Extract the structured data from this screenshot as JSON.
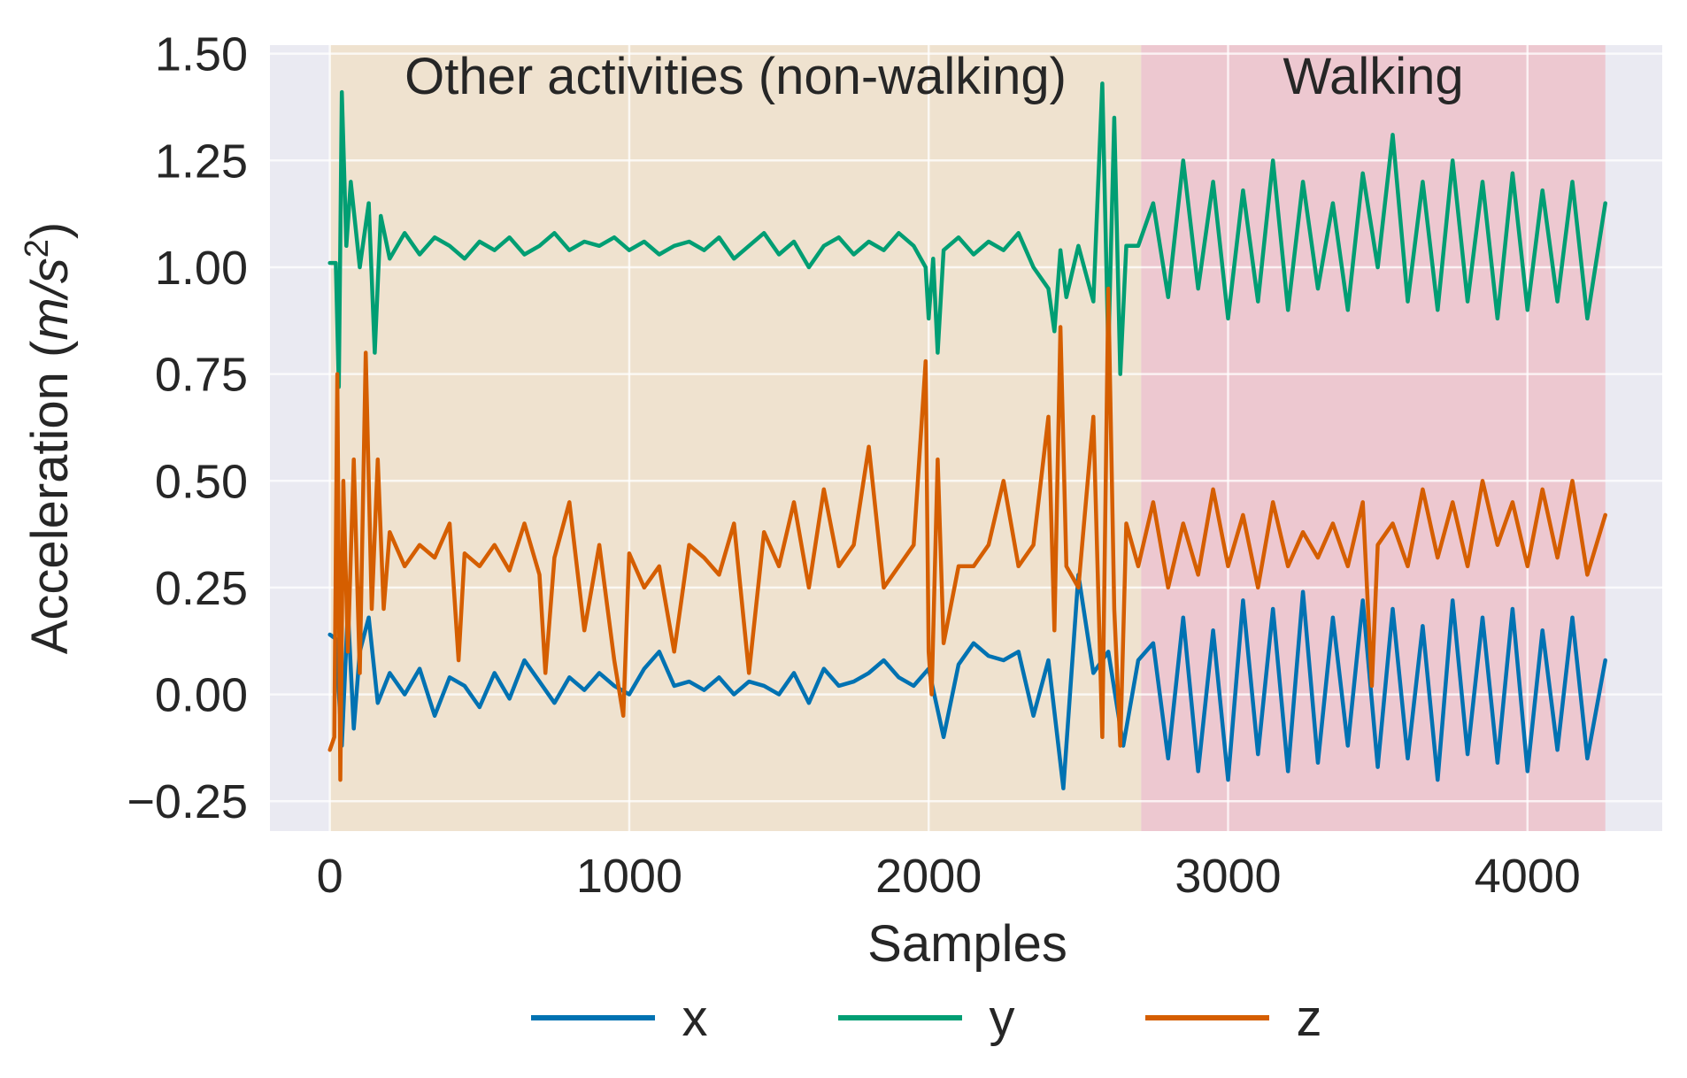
{
  "chart_data": {
    "type": "line",
    "title": "",
    "xlabel": "Samples",
    "ylabel_main": "Acceleration (",
    "ylabel_unit": "m/s",
    "ylabel_exp": "2",
    "ylabel_close": ")",
    "xlim": [
      -200,
      4450
    ],
    "ylim": [
      -0.32,
      1.52
    ],
    "xticks": [
      0,
      1000,
      2000,
      3000,
      4000
    ],
    "xtick_labels": [
      "0",
      "1000",
      "2000",
      "3000",
      "4000"
    ],
    "yticks": [
      -0.25,
      0.0,
      0.25,
      0.5,
      0.75,
      1.0,
      1.25,
      1.5
    ],
    "ytick_labels": [
      "−0.25",
      "0.00",
      "0.25",
      "0.50",
      "0.75",
      "1.00",
      "1.25",
      "1.50"
    ],
    "grid": true,
    "regions": [
      {
        "label": "Other activities (non-walking)",
        "x_start": 0,
        "x_end": 2710,
        "color": "#efe2cf"
      },
      {
        "label": "Walking",
        "x_start": 2710,
        "x_end": 4260,
        "color": "#edc8d0"
      }
    ],
    "legend_position": "bottom-center",
    "series": [
      {
        "name": "x",
        "color": "#0072b2",
        "x": [
          0,
          20,
          40,
          60,
          80,
          100,
          130,
          160,
          200,
          250,
          300,
          350,
          400,
          450,
          500,
          550,
          600,
          650,
          700,
          750,
          800,
          850,
          900,
          950,
          1000,
          1050,
          1100,
          1150,
          1200,
          1250,
          1300,
          1350,
          1400,
          1450,
          1500,
          1550,
          1600,
          1650,
          1700,
          1750,
          1800,
          1850,
          1900,
          1950,
          2000,
          2050,
          2100,
          2150,
          2200,
          2250,
          2300,
          2350,
          2400,
          2450,
          2500,
          2550,
          2600,
          2650,
          2700,
          2750,
          2800,
          2850,
          2900,
          2950,
          3000,
          3050,
          3100,
          3150,
          3200,
          3250,
          3300,
          3350,
          3400,
          3450,
          3500,
          3550,
          3600,
          3650,
          3700,
          3750,
          3800,
          3850,
          3900,
          3950,
          4000,
          4050,
          4100,
          4150,
          4200,
          4260
        ],
        "values": [
          0.14,
          0.13,
          -0.12,
          0.2,
          -0.08,
          0.1,
          0.18,
          -0.02,
          0.05,
          0.0,
          0.06,
          -0.05,
          0.04,
          0.02,
          -0.03,
          0.05,
          -0.01,
          0.08,
          0.03,
          -0.02,
          0.04,
          0.01,
          0.05,
          0.02,
          0.0,
          0.06,
          0.1,
          0.02,
          0.03,
          0.01,
          0.04,
          0.0,
          0.03,
          0.02,
          0.0,
          0.05,
          -0.02,
          0.06,
          0.02,
          0.03,
          0.05,
          0.08,
          0.04,
          0.02,
          0.06,
          -0.1,
          0.07,
          0.12,
          0.09,
          0.08,
          0.1,
          -0.05,
          0.08,
          -0.22,
          0.28,
          0.05,
          0.1,
          -0.12,
          0.08,
          0.12,
          -0.15,
          0.18,
          -0.18,
          0.15,
          -0.2,
          0.22,
          -0.14,
          0.2,
          -0.18,
          0.24,
          -0.16,
          0.18,
          -0.12,
          0.22,
          -0.17,
          0.2,
          -0.15,
          0.16,
          -0.2,
          0.22,
          -0.14,
          0.18,
          -0.16,
          0.2,
          -0.18,
          0.15,
          -0.13,
          0.18,
          -0.15,
          0.08
        ]
      },
      {
        "name": "y",
        "color": "#009e73",
        "x": [
          0,
          20,
          30,
          40,
          55,
          70,
          100,
          130,
          150,
          170,
          200,
          250,
          300,
          350,
          400,
          450,
          500,
          550,
          600,
          650,
          700,
          750,
          800,
          850,
          900,
          950,
          1000,
          1050,
          1100,
          1150,
          1200,
          1250,
          1300,
          1350,
          1400,
          1450,
          1500,
          1550,
          1600,
          1650,
          1700,
          1750,
          1800,
          1850,
          1900,
          1950,
          1990,
          2000,
          2015,
          2030,
          2050,
          2100,
          2150,
          2200,
          2250,
          2300,
          2350,
          2400,
          2420,
          2440,
          2460,
          2500,
          2550,
          2580,
          2600,
          2620,
          2640,
          2660,
          2700,
          2750,
          2800,
          2850,
          2900,
          2950,
          3000,
          3050,
          3100,
          3150,
          3200,
          3250,
          3300,
          3350,
          3400,
          3450,
          3500,
          3550,
          3600,
          3650,
          3700,
          3750,
          3800,
          3850,
          3900,
          3950,
          4000,
          4050,
          4100,
          4150,
          4200,
          4260
        ],
        "values": [
          1.01,
          1.01,
          0.72,
          1.41,
          1.05,
          1.2,
          1.0,
          1.15,
          0.8,
          1.12,
          1.02,
          1.08,
          1.03,
          1.07,
          1.05,
          1.02,
          1.06,
          1.04,
          1.07,
          1.03,
          1.05,
          1.08,
          1.04,
          1.06,
          1.05,
          1.07,
          1.04,
          1.06,
          1.03,
          1.05,
          1.06,
          1.04,
          1.07,
          1.02,
          1.05,
          1.08,
          1.03,
          1.06,
          1.0,
          1.05,
          1.07,
          1.03,
          1.06,
          1.04,
          1.08,
          1.05,
          1.0,
          0.88,
          1.02,
          0.8,
          1.04,
          1.07,
          1.03,
          1.06,
          1.04,
          1.08,
          1.0,
          0.95,
          0.85,
          1.04,
          0.93,
          1.05,
          0.92,
          1.43,
          0.8,
          1.35,
          0.75,
          1.05,
          1.05,
          1.15,
          0.93,
          1.25,
          0.95,
          1.2,
          0.88,
          1.18,
          0.92,
          1.25,
          0.9,
          1.2,
          0.95,
          1.15,
          0.9,
          1.22,
          1.0,
          1.31,
          0.92,
          1.2,
          0.9,
          1.25,
          0.92,
          1.2,
          0.88,
          1.22,
          0.9,
          1.18,
          0.92,
          1.2,
          0.88,
          1.15
        ]
      },
      {
        "name": "z",
        "color": "#d55e00",
        "x": [
          0,
          15,
          25,
          35,
          45,
          60,
          80,
          100,
          120,
          140,
          160,
          180,
          200,
          250,
          300,
          350,
          400,
          430,
          450,
          500,
          550,
          600,
          650,
          700,
          720,
          750,
          800,
          850,
          900,
          950,
          980,
          1000,
          1050,
          1100,
          1150,
          1200,
          1250,
          1300,
          1350,
          1400,
          1450,
          1500,
          1550,
          1600,
          1650,
          1700,
          1750,
          1800,
          1850,
          1900,
          1950,
          1990,
          2000,
          2010,
          2030,
          2050,
          2100,
          2150,
          2200,
          2250,
          2300,
          2350,
          2400,
          2420,
          2440,
          2460,
          2500,
          2550,
          2580,
          2600,
          2620,
          2640,
          2660,
          2700,
          2750,
          2800,
          2850,
          2900,
          2950,
          3000,
          3050,
          3100,
          3150,
          3200,
          3250,
          3300,
          3350,
          3400,
          3450,
          3480,
          3500,
          3550,
          3600,
          3650,
          3700,
          3750,
          3800,
          3850,
          3900,
          3950,
          4000,
          4050,
          4100,
          4150,
          4200,
          4260
        ],
        "values": [
          -0.13,
          -0.1,
          0.75,
          -0.2,
          0.5,
          0.1,
          0.55,
          0.05,
          0.8,
          0.2,
          0.55,
          0.2,
          0.38,
          0.3,
          0.35,
          0.32,
          0.4,
          0.08,
          0.33,
          0.3,
          0.35,
          0.29,
          0.4,
          0.28,
          0.05,
          0.32,
          0.45,
          0.15,
          0.35,
          0.08,
          -0.05,
          0.33,
          0.25,
          0.3,
          0.1,
          0.35,
          0.32,
          0.28,
          0.4,
          0.05,
          0.38,
          0.3,
          0.45,
          0.25,
          0.48,
          0.3,
          0.35,
          0.58,
          0.25,
          0.3,
          0.35,
          0.78,
          0.1,
          0.0,
          0.55,
          0.12,
          0.3,
          0.3,
          0.35,
          0.5,
          0.3,
          0.35,
          0.65,
          0.15,
          0.86,
          0.3,
          0.25,
          0.65,
          -0.1,
          0.95,
          0.2,
          -0.12,
          0.4,
          0.3,
          0.45,
          0.25,
          0.4,
          0.28,
          0.48,
          0.3,
          0.42,
          0.25,
          0.45,
          0.3,
          0.38,
          0.32,
          0.4,
          0.3,
          0.45,
          0.02,
          0.35,
          0.4,
          0.3,
          0.48,
          0.32,
          0.45,
          0.3,
          0.5,
          0.35,
          0.45,
          0.3,
          0.48,
          0.32,
          0.5,
          0.28,
          0.42
        ]
      }
    ]
  }
}
